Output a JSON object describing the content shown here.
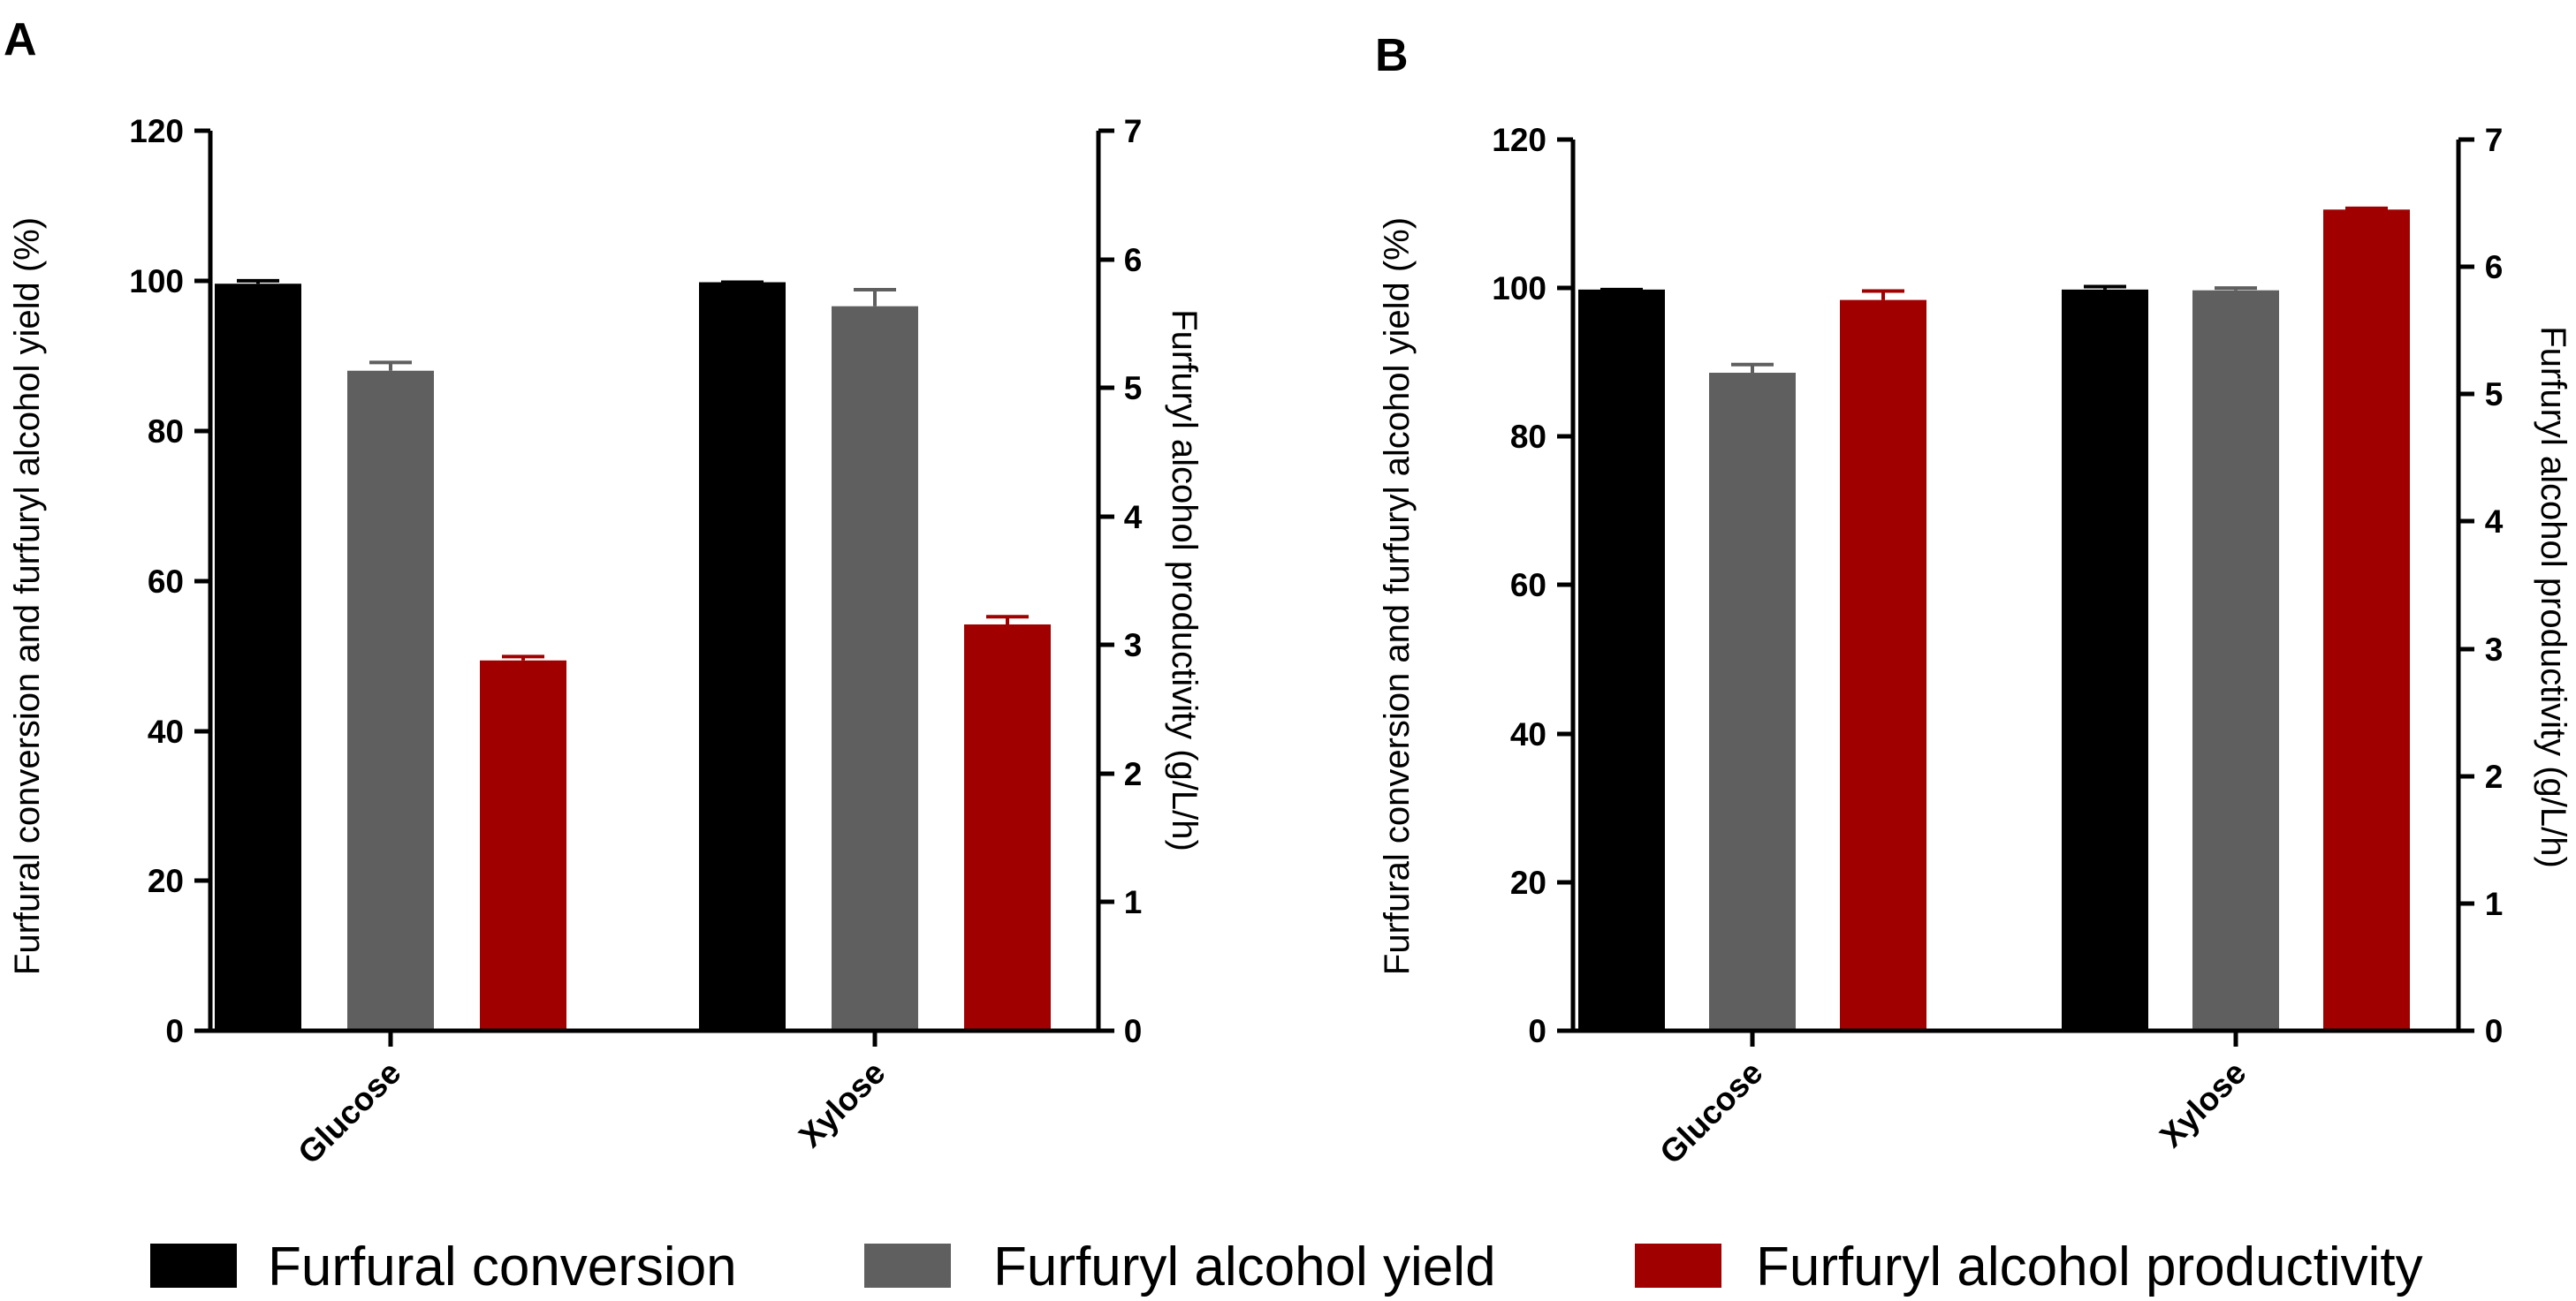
{
  "colors": {
    "conversion": "#000000",
    "yield": "#5f5f5f",
    "productivity": "#a00000",
    "axis": "#000000"
  },
  "legend": [
    {
      "key": "conversion",
      "label": "Furfural conversion"
    },
    {
      "key": "yield",
      "label": "Furfuryl alcohol yield"
    },
    {
      "key": "productivity",
      "label": "Furfuryl alcohol productivity"
    }
  ],
  "chart_data": [
    {
      "panel": "A",
      "type": "bar",
      "categories": [
        "Glucose",
        "Xylose"
      ],
      "ylabel_left": "Furfural conversion and furfuryl alcohol yield (%)",
      "ylabel_right": "Furfuryl alcohol productivity (g/L/h)",
      "ylim_left": [
        0,
        120
      ],
      "ylim_right": [
        0,
        7
      ],
      "yticks_left": [
        "0",
        "20",
        "40",
        "60",
        "80",
        "100",
        "120"
      ],
      "yticks_right": [
        "0",
        "1",
        "2",
        "3",
        "4",
        "5",
        "6",
        "7"
      ],
      "series": [
        {
          "key": "conversion",
          "name": "Furfural conversion",
          "axis": "left",
          "values": [
            99.6,
            99.8
          ],
          "errors": [
            0.4,
            0
          ]
        },
        {
          "key": "yield",
          "name": "Furfuryl alcohol yield",
          "axis": "left",
          "values": [
            88.0,
            96.6
          ],
          "errors": [
            1.1,
            2.2
          ]
        },
        {
          "key": "productivity",
          "name": "Furfuryl alcohol productivity",
          "axis": "right",
          "values": [
            2.88,
            3.16
          ],
          "errors": [
            0.03,
            0.06
          ]
        }
      ]
    },
    {
      "panel": "B",
      "type": "bar",
      "categories": [
        "Glucose",
        "Xylose"
      ],
      "ylabel_left": "Furfural conversion and furfuryl alcohol yield (%)",
      "ylabel_right": "Furfuryl alcohol productivity (g/L/h)",
      "ylim_left": [
        0,
        120
      ],
      "ylim_right": [
        0,
        7
      ],
      "yticks_left": [
        "0",
        "20",
        "40",
        "60",
        "80",
        "100",
        "120"
      ],
      "yticks_right": [
        "0",
        "1",
        "2",
        "3",
        "4",
        "5",
        "6",
        "7"
      ],
      "series": [
        {
          "key": "conversion",
          "name": "Furfural conversion",
          "axis": "left",
          "values": [
            99.8,
            99.8
          ],
          "errors": [
            0,
            0.4
          ]
        },
        {
          "key": "yield",
          "name": "Furfuryl alcohol yield",
          "axis": "left",
          "values": [
            88.6,
            99.7
          ],
          "errors": [
            1.1,
            0.3
          ]
        },
        {
          "key": "productivity",
          "name": "Furfuryl alcohol productivity",
          "axis": "right",
          "values": [
            5.74,
            6.45
          ],
          "errors": [
            0.07,
            0.01
          ]
        }
      ]
    }
  ]
}
